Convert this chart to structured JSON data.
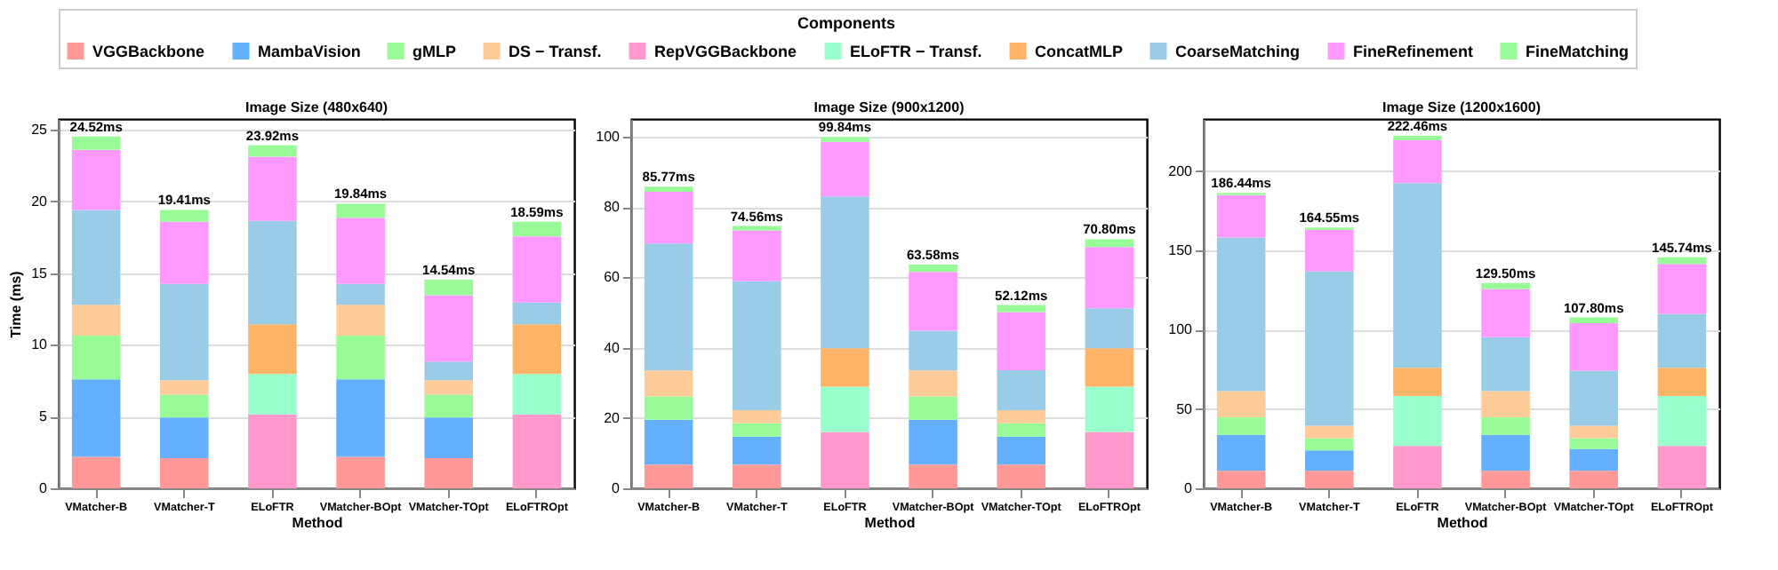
{
  "chart_data": [
    {
      "type": "bar",
      "stacked": true,
      "title": "Image Size (480x640)",
      "xlabel": "Method",
      "ylabel": "Time (ms)",
      "legend_title": "Components",
      "legend": "top",
      "grid": "y",
      "categories": [
        "VMatcher-B",
        "VMatcher-T",
        "ELoFTR",
        "VMatcher-BOpt",
        "VMatcher-TOpt",
        "ELoFTROpt"
      ],
      "ylim": [
        0,
        25.75
      ],
      "yticks": [
        0,
        5,
        10,
        15,
        20,
        25
      ],
      "totals": [
        "24.52ms",
        "19.41ms",
        "23.92ms",
        "19.84ms",
        "14.54ms",
        "18.59ms"
      ],
      "series": [
        {
          "name": "VGGBackbone",
          "color": "#ff9896",
          "values": [
            2.2,
            2.1,
            null,
            2.2,
            2.1,
            null
          ]
        },
        {
          "name": "MambaVision",
          "color": "#64b0ff",
          "values": [
            5.4,
            2.84,
            null,
            5.4,
            2.84,
            null
          ]
        },
        {
          "name": "gMLP",
          "color": "#98fb98",
          "values": [
            3.05,
            1.59,
            null,
            3.05,
            1.59,
            null
          ]
        },
        {
          "name": "DS − Transf.",
          "color": "#ffcc99",
          "values": [
            2.15,
            1.01,
            null,
            2.15,
            1.01,
            null
          ]
        },
        {
          "name": "RepVGGBackbone",
          "color": "#ff99cc",
          "values": [
            null,
            null,
            5.16,
            null,
            null,
            5.16
          ]
        },
        {
          "name": "ELoFTR − Transf.",
          "color": "#99ffcc",
          "values": [
            null,
            null,
            2.81,
            null,
            null,
            2.81
          ]
        },
        {
          "name": "ConcatMLP",
          "color": "#ffb366",
          "values": [
            null,
            null,
            3.47,
            null,
            null,
            3.47
          ]
        },
        {
          "name": "CoarseMatching",
          "color": "#99cce6",
          "values": [
            6.6,
            6.71,
            7.21,
            1.45,
            1.3,
            1.51
          ]
        },
        {
          "name": "FineRefinement",
          "color": "#ff99ff",
          "values": [
            4.2,
            4.33,
            4.47,
            4.62,
            4.62,
            4.62
          ]
        },
        {
          "name": "FineMatching",
          "color": "#98fb98",
          "values": [
            0.92,
            0.83,
            0.8,
            0.97,
            1.08,
            1.02
          ]
        }
      ]
    },
    {
      "type": "bar",
      "stacked": true,
      "title": "Image Size (900x1200)",
      "xlabel": "Method",
      "grid": "y",
      "categories": [
        "VMatcher-B",
        "VMatcher-T",
        "ELoFTR",
        "VMatcher-BOpt",
        "VMatcher-TOpt",
        "ELoFTROpt"
      ],
      "ylim": [
        0,
        105
      ],
      "yticks": [
        0,
        20,
        40,
        60,
        80,
        100
      ],
      "totals": [
        "85.77ms",
        "74.56ms",
        "99.84ms",
        "63.58ms",
        "52.12ms",
        "70.80ms"
      ],
      "series": [
        {
          "name": "VGGBackbone",
          "color": "#ff9896",
          "values": [
            6.75,
            6.75,
            null,
            6.75,
            6.75,
            null
          ]
        },
        {
          "name": "MambaVision",
          "color": "#64b0ff",
          "values": [
            12.75,
            7.95,
            null,
            12.75,
            7.95,
            null
          ]
        },
        {
          "name": "gMLP",
          "color": "#98fb98",
          "values": [
            6.6,
            3.8,
            null,
            6.6,
            3.8,
            null
          ]
        },
        {
          "name": "DS − Transf.",
          "color": "#ffcc99",
          "values": [
            7.4,
            3.7,
            null,
            7.4,
            3.7,
            null
          ]
        },
        {
          "name": "RepVGGBackbone",
          "color": "#ff99cc",
          "values": [
            null,
            null,
            16.0,
            null,
            null,
            16.0
          ]
        },
        {
          "name": "ELoFTR − Transf.",
          "color": "#99ffcc",
          "values": [
            null,
            null,
            12.9,
            null,
            null,
            12.9
          ]
        },
        {
          "name": "ConcatMLP",
          "color": "#ffb366",
          "values": [
            null,
            null,
            10.9,
            null,
            null,
            10.9
          ]
        },
        {
          "name": "CoarseMatching",
          "color": "#99cce6",
          "values": [
            36.1,
            36.7,
            43.2,
            11.3,
            11.4,
            11.4
          ]
        },
        {
          "name": "FineRefinement",
          "color": "#ff99ff",
          "values": [
            14.7,
            14.4,
            15.5,
            16.7,
            16.5,
            17.4
          ]
        },
        {
          "name": "FineMatching",
          "color": "#98fb98",
          "values": [
            1.47,
            1.26,
            1.34,
            2.08,
            2.02,
            2.2
          ]
        }
      ]
    },
    {
      "type": "bar",
      "stacked": true,
      "title": "Image Size (1200x1600)",
      "xlabel": "Method",
      "grid": "y",
      "categories": [
        "VMatcher-B",
        "VMatcher-T",
        "ELoFTR",
        "VMatcher-BOpt",
        "VMatcher-TOpt",
        "ELoFTROpt"
      ],
      "ylim": [
        0,
        233
      ],
      "yticks": [
        0,
        50,
        100,
        150,
        200
      ],
      "totals": [
        "186.44ms",
        "164.55ms",
        "222.46ms",
        "129.50ms",
        "107.80ms",
        "145.74ms"
      ],
      "series": [
        {
          "name": "VGGBackbone",
          "color": "#ff9896",
          "values": [
            11.1,
            11.1,
            null,
            11.1,
            11.1,
            null
          ]
        },
        {
          "name": "MambaVision",
          "color": "#64b0ff",
          "values": [
            22.6,
            12.8,
            null,
            22.6,
            13.7,
            null
          ]
        },
        {
          "name": "gMLP",
          "color": "#98fb98",
          "values": [
            11.1,
            7.8,
            null,
            11.1,
            6.9,
            null
          ]
        },
        {
          "name": "DS − Transf.",
          "color": "#ffcc99",
          "values": [
            16.6,
            7.8,
            null,
            16.6,
            7.8,
            null
          ]
        },
        {
          "name": "RepVGGBackbone",
          "color": "#ff99cc",
          "values": [
            null,
            null,
            26.8,
            null,
            null,
            26.8
          ]
        },
        {
          "name": "ELoFTR − Transf.",
          "color": "#99ffcc",
          "values": [
            null,
            null,
            31.4,
            null,
            null,
            31.4
          ]
        },
        {
          "name": "ConcatMLP",
          "color": "#ffb366",
          "values": [
            null,
            null,
            17.9,
            null,
            null,
            17.9
          ]
        },
        {
          "name": "CoarseMatching",
          "color": "#99cce6",
          "values": [
            96.8,
            97.4,
            116.4,
            34.0,
            34.7,
            34.0
          ]
        },
        {
          "name": "FineRefinement",
          "color": "#ff99ff",
          "values": [
            26.8,
            26.2,
            27.1,
            30.4,
            30.0,
            31.4
          ]
        },
        {
          "name": "FineMatching",
          "color": "#98fb98",
          "values": [
            1.44,
            1.45,
            2.86,
            3.7,
            3.6,
            4.24
          ]
        }
      ]
    }
  ]
}
